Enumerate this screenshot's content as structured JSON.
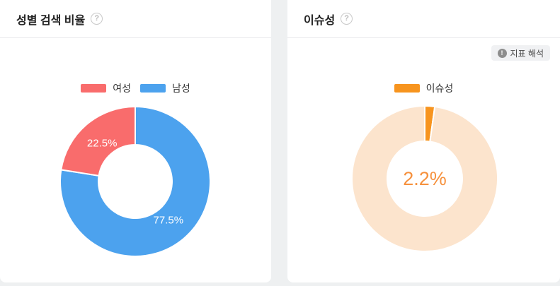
{
  "icons": {
    "help": "?",
    "info": "!"
  },
  "left_panel": {
    "title": "성별 검색 비율"
  },
  "right_panel": {
    "title": "이슈성",
    "interpret_badge_label": "지표 해석"
  },
  "colors": {
    "page_background": "#eef0f1",
    "panel_background": "#ffffff",
    "divider": "#e9eaec",
    "female": "#f96c6c",
    "male": "#4ca2ee",
    "issue": "#f7941e",
    "issue_track": "#fce4cd"
  },
  "chart_data": [
    {
      "type": "pie",
      "variant": "donut",
      "title": "성별 검색 비율",
      "start_angle": "top",
      "direction": "clockwise",
      "outer_radius": 106,
      "inner_radius": 52,
      "label_radius": 72,
      "legend_position": "top-center",
      "legend": [
        {
          "key": "female",
          "label": "여성",
          "color": "#f96c6c"
        },
        {
          "key": "male",
          "label": "남성",
          "color": "#4ca2ee"
        }
      ],
      "slices": [
        {
          "key": "male",
          "name": "남성",
          "value": 77.5,
          "color": "#4ca2ee",
          "label": "77.5%"
        },
        {
          "key": "female",
          "name": "여성",
          "value": 22.5,
          "color": "#f96c6c",
          "label": "22.5%"
        }
      ]
    },
    {
      "type": "pie",
      "variant": "donut",
      "title": "이슈성",
      "start_angle": "top",
      "direction": "clockwise",
      "outer_radius": 103,
      "inner_radius": 53,
      "legend_position": "top-center",
      "legend": [
        {
          "key": "issue",
          "label": "이슈성",
          "color": "#f7941e"
        }
      ],
      "slices": [
        {
          "key": "issue",
          "name": "이슈성",
          "value": 2.2,
          "color": "#f7941e"
        },
        {
          "key": "remainder",
          "name": "",
          "value": 97.8,
          "color": "#fce4cd"
        }
      ],
      "center_label": "2.2%",
      "center_label_color": "#f6913d"
    }
  ]
}
